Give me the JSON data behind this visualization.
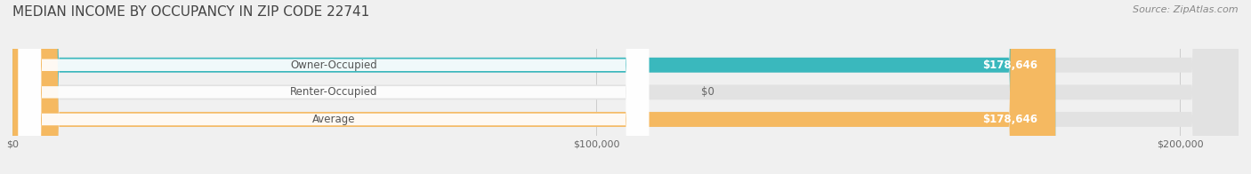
{
  "title": "MEDIAN INCOME BY OCCUPANCY IN ZIP CODE 22741",
  "source": "Source: ZipAtlas.com",
  "categories": [
    "Owner-Occupied",
    "Renter-Occupied",
    "Average"
  ],
  "values": [
    178646,
    0,
    178646
  ],
  "bar_colors": [
    "#3ab8bd",
    "#c9a8d4",
    "#f5b961"
  ],
  "background_color": "#f0f0f0",
  "bar_bg_color": "#e2e2e2",
  "xlim": [
    0,
    210000
  ],
  "xticks": [
    0,
    100000,
    200000
  ],
  "xtick_labels": [
    "$0",
    "$100,000",
    "$200,000"
  ],
  "value_labels": [
    "$178,646",
    "$0",
    "$178,646"
  ],
  "title_fontsize": 11,
  "label_fontsize": 8.5,
  "tick_fontsize": 8,
  "source_fontsize": 8
}
